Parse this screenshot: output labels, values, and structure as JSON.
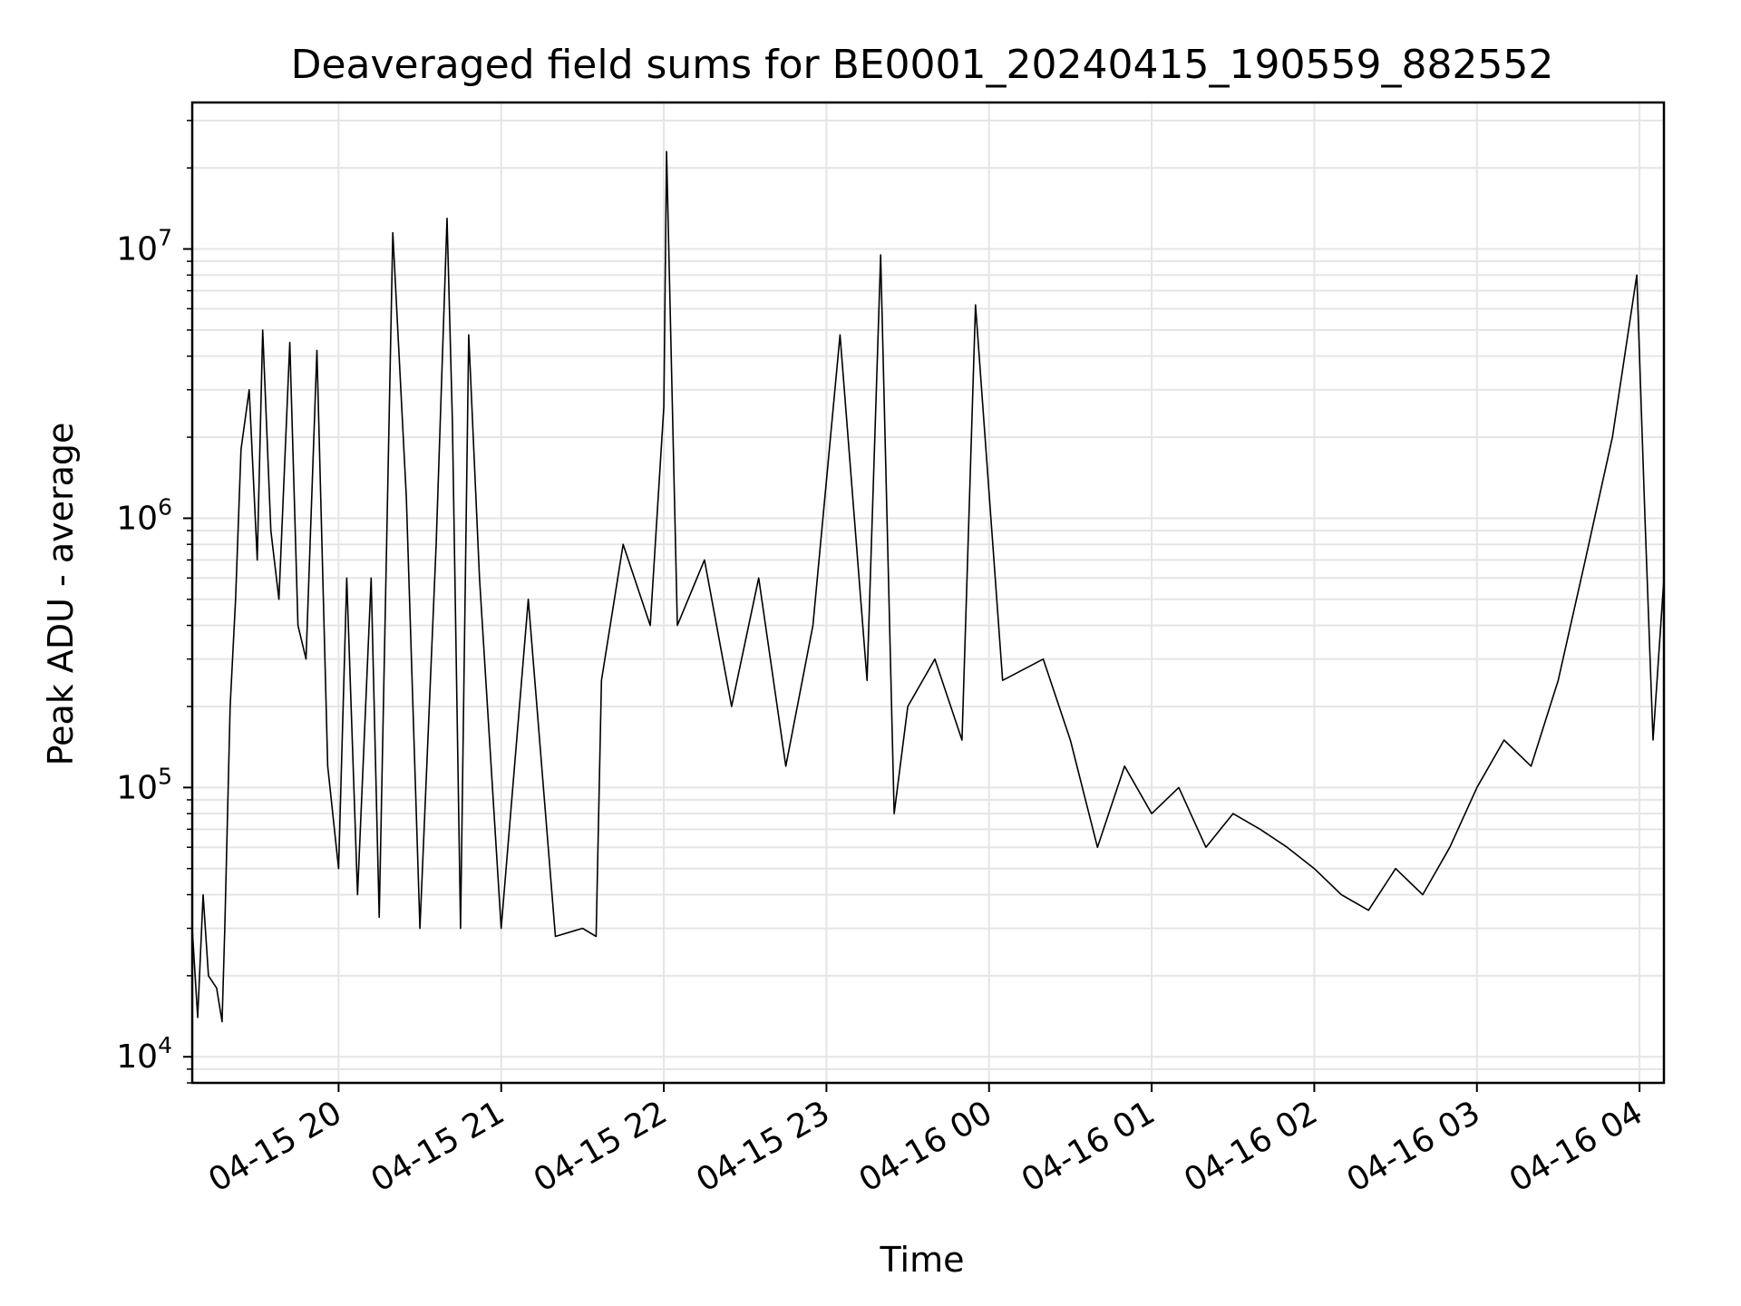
{
  "chart_data": {
    "type": "line",
    "title": "Deaveraged field sums for BE0001_20240415_190559_882552",
    "xlabel": "Time",
    "ylabel": "Peak ADU - average",
    "yscale": "log",
    "ylim": [
      8000,
      35000000
    ],
    "xlim": [
      "2024-04-15 19:06",
      "2024-04-16 04:09"
    ],
    "grid": true,
    "line_color": "#000000",
    "grid_color": "#e5e5e5",
    "x_ticks": [
      {
        "label": "04-15 20",
        "t": "2024-04-15 20:00"
      },
      {
        "label": "04-15 21",
        "t": "2024-04-15 21:00"
      },
      {
        "label": "04-15 22",
        "t": "2024-04-15 22:00"
      },
      {
        "label": "04-15 23",
        "t": "2024-04-15 23:00"
      },
      {
        "label": "04-16 00",
        "t": "2024-04-16 00:00"
      },
      {
        "label": "04-16 01",
        "t": "2024-04-16 01:00"
      },
      {
        "label": "04-16 02",
        "t": "2024-04-16 02:00"
      },
      {
        "label": "04-16 03",
        "t": "2024-04-16 03:00"
      },
      {
        "label": "04-16 04",
        "t": "2024-04-16 04:00"
      }
    ],
    "y_ticks": [
      {
        "base": "10",
        "exp": "4",
        "value": 10000
      },
      {
        "base": "10",
        "exp": "5",
        "value": 100000
      },
      {
        "base": "10",
        "exp": "6",
        "value": 1000000
      },
      {
        "base": "10",
        "exp": "7",
        "value": 10000000
      }
    ],
    "series": [
      {
        "points": [
          [
            "2024-04-15 19:06",
            30000
          ],
          [
            "2024-04-15 19:08",
            14000
          ],
          [
            "2024-04-15 19:10",
            40000
          ],
          [
            "2024-04-15 19:12",
            20000
          ],
          [
            "2024-04-15 19:15",
            18000
          ],
          [
            "2024-04-15 19:17",
            13500
          ],
          [
            "2024-04-15 19:18",
            30000
          ],
          [
            "2024-04-15 19:20",
            200000
          ],
          [
            "2024-04-15 19:22",
            500000
          ],
          [
            "2024-04-15 19:24",
            1800000
          ],
          [
            "2024-04-15 19:27",
            3000000
          ],
          [
            "2024-04-15 19:30",
            700000
          ],
          [
            "2024-04-15 19:32",
            5000000
          ],
          [
            "2024-04-15 19:35",
            900000
          ],
          [
            "2024-04-15 19:38",
            500000
          ],
          [
            "2024-04-15 19:42",
            4500000
          ],
          [
            "2024-04-15 19:45",
            400000
          ],
          [
            "2024-04-15 19:48",
            300000
          ],
          [
            "2024-04-15 19:52",
            4200000
          ],
          [
            "2024-04-15 19:56",
            120000
          ],
          [
            "2024-04-15 20:00",
            50000
          ],
          [
            "2024-04-15 20:03",
            600000
          ],
          [
            "2024-04-15 20:07",
            40000
          ],
          [
            "2024-04-15 20:12",
            600000
          ],
          [
            "2024-04-15 20:15",
            33000
          ],
          [
            "2024-04-15 20:20",
            11500000
          ],
          [
            "2024-04-15 20:25",
            1200000
          ],
          [
            "2024-04-15 20:30",
            30000
          ],
          [
            "2024-04-15 20:36",
            800000
          ],
          [
            "2024-04-15 20:40",
            13000000
          ],
          [
            "2024-04-15 20:42",
            2300000
          ],
          [
            "2024-04-15 20:45",
            30000
          ],
          [
            "2024-04-15 20:48",
            4800000
          ],
          [
            "2024-04-15 20:52",
            600000
          ],
          [
            "2024-04-15 21:00",
            30000
          ],
          [
            "2024-04-15 21:10",
            500000
          ],
          [
            "2024-04-15 21:20",
            28000
          ],
          [
            "2024-04-15 21:30",
            30000
          ],
          [
            "2024-04-15 21:35",
            28000
          ],
          [
            "2024-04-15 21:37",
            250000
          ],
          [
            "2024-04-15 21:45",
            800000
          ],
          [
            "2024-04-15 21:55",
            400000
          ],
          [
            "2024-04-15 22:00",
            2600000
          ],
          [
            "2024-04-15 22:01",
            23000000
          ],
          [
            "2024-04-15 22:05",
            400000
          ],
          [
            "2024-04-15 22:15",
            700000
          ],
          [
            "2024-04-15 22:25",
            200000
          ],
          [
            "2024-04-15 22:35",
            600000
          ],
          [
            "2024-04-15 22:45",
            120000
          ],
          [
            "2024-04-15 22:55",
            400000
          ],
          [
            "2024-04-15 23:05",
            4800000
          ],
          [
            "2024-04-15 23:15",
            250000
          ],
          [
            "2024-04-15 23:20",
            9500000
          ],
          [
            "2024-04-15 23:25",
            80000
          ],
          [
            "2024-04-15 23:30",
            200000
          ],
          [
            "2024-04-15 23:40",
            300000
          ],
          [
            "2024-04-15 23:50",
            150000
          ],
          [
            "2024-04-15 23:55",
            6200000
          ],
          [
            "2024-04-16 00:05",
            250000
          ],
          [
            "2024-04-16 00:20",
            300000
          ],
          [
            "2024-04-16 00:30",
            150000
          ],
          [
            "2024-04-16 00:40",
            60000
          ],
          [
            "2024-04-16 00:50",
            120000
          ],
          [
            "2024-04-16 01:00",
            80000
          ],
          [
            "2024-04-16 01:10",
            100000
          ],
          [
            "2024-04-16 01:20",
            60000
          ],
          [
            "2024-04-16 01:30",
            80000
          ],
          [
            "2024-04-16 01:40",
            70000
          ],
          [
            "2024-04-16 01:50",
            60000
          ],
          [
            "2024-04-16 02:00",
            50000
          ],
          [
            "2024-04-16 02:10",
            40000
          ],
          [
            "2024-04-16 02:20",
            35000
          ],
          [
            "2024-04-16 02:30",
            50000
          ],
          [
            "2024-04-16 02:40",
            40000
          ],
          [
            "2024-04-16 02:50",
            60000
          ],
          [
            "2024-04-16 03:00",
            100000
          ],
          [
            "2024-04-16 03:10",
            150000
          ],
          [
            "2024-04-16 03:20",
            120000
          ],
          [
            "2024-04-16 03:30",
            250000
          ],
          [
            "2024-04-16 03:40",
            700000
          ],
          [
            "2024-04-16 03:50",
            2000000
          ],
          [
            "2024-04-16 03:59",
            8000000
          ],
          [
            "2024-04-16 04:02",
            1000000
          ],
          [
            "2024-04-16 04:05",
            150000
          ],
          [
            "2024-04-16 04:09",
            600000
          ]
        ]
      }
    ]
  }
}
